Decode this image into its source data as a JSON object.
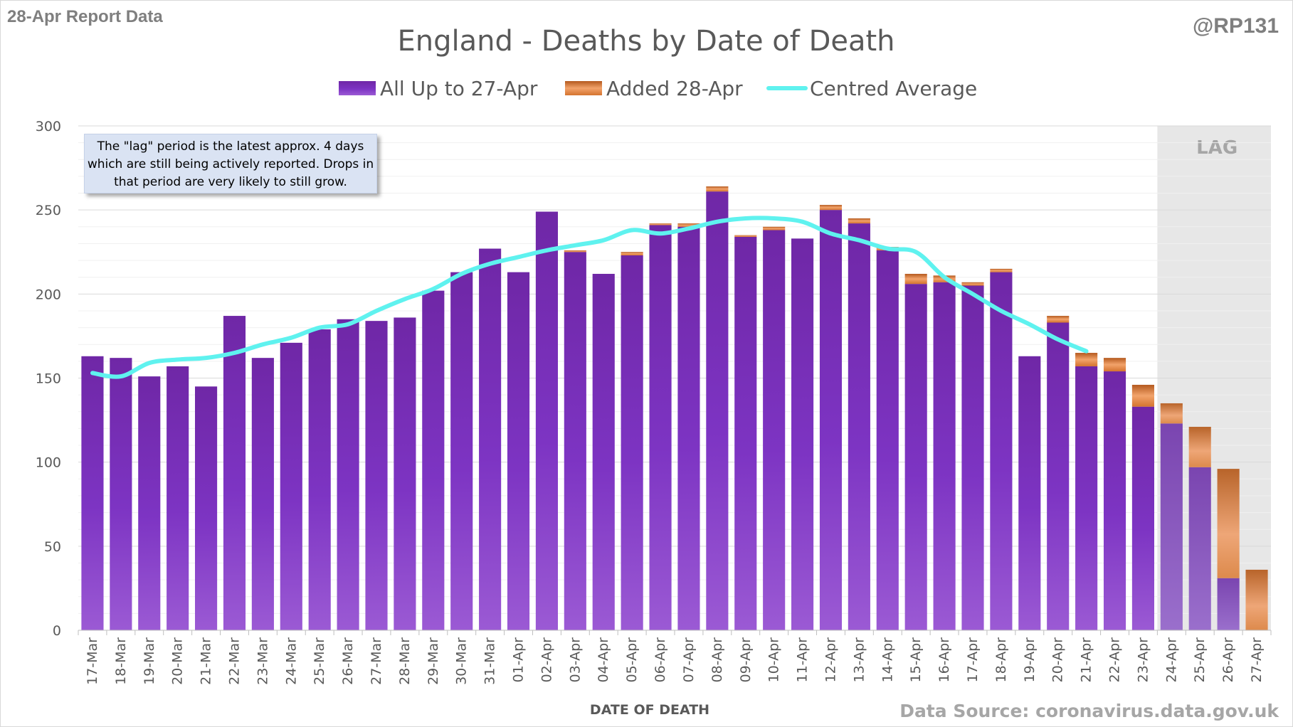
{
  "report_label": "28-Apr Report Data",
  "handle": "@RP131",
  "source": "Data Source: coronavirus.data.gov.uk",
  "annotation": "The \"lag\" period is the latest approx. 4 days which are still being actively reported. Drops in that period are very likely to still grow.",
  "lag_label": "LAG",
  "colors": {
    "all": "#7b2fbf",
    "added": "#e07a2e",
    "average": "#5ff2ef",
    "lag_shade": "#e6e6e6"
  },
  "chart_data": {
    "type": "bar",
    "title": "England - Deaths by Date of Death",
    "xlabel": "DATE OF DEATH",
    "ylabel": "",
    "ylim": [
      0,
      300
    ],
    "yticks": [
      0,
      50,
      100,
      150,
      200,
      250,
      300
    ],
    "stacked": true,
    "legend_position": "top",
    "grid": true,
    "categories": [
      "17-Mar",
      "18-Mar",
      "19-Mar",
      "20-Mar",
      "21-Mar",
      "22-Mar",
      "23-Mar",
      "24-Mar",
      "25-Mar",
      "26-Mar",
      "27-Mar",
      "28-Mar",
      "29-Mar",
      "30-Mar",
      "31-Mar",
      "01-Apr",
      "02-Apr",
      "03-Apr",
      "04-Apr",
      "05-Apr",
      "06-Apr",
      "07-Apr",
      "08-Apr",
      "09-Apr",
      "10-Apr",
      "11-Apr",
      "12-Apr",
      "13-Apr",
      "14-Apr",
      "15-Apr",
      "16-Apr",
      "17-Apr",
      "18-Apr",
      "19-Apr",
      "20-Apr",
      "21-Apr",
      "22-Apr",
      "23-Apr",
      "24-Apr",
      "25-Apr",
      "26-Apr",
      "27-Apr"
    ],
    "series": [
      {
        "name": "All Up to 27-Apr",
        "values": [
          163,
          162,
          151,
          157,
          145,
          187,
          162,
          171,
          179,
          185,
          184,
          186,
          202,
          213,
          227,
          213,
          249,
          225,
          212,
          223,
          241,
          240,
          261,
          234,
          238,
          233,
          250,
          242,
          226,
          206,
          207,
          205,
          213,
          163,
          183,
          157,
          154,
          133,
          123,
          97,
          31,
          0
        ]
      },
      {
        "name": "Added 28-Apr",
        "values": [
          0,
          0,
          0,
          0,
          0,
          0,
          0,
          0,
          0,
          0,
          0,
          0,
          0,
          0,
          0,
          0,
          0,
          1,
          0,
          2,
          1,
          2,
          3,
          1,
          2,
          0,
          3,
          3,
          2,
          6,
          4,
          2,
          2,
          0,
          4,
          8,
          8,
          13,
          12,
          24,
          65,
          36
        ]
      },
      {
        "name": "Centred Average",
        "type": "line",
        "values": [
          153,
          151,
          159,
          161,
          162,
          165,
          170,
          174,
          180,
          182,
          190,
          197,
          203,
          212,
          218,
          222,
          226,
          229,
          232,
          238,
          236,
          239,
          243,
          245,
          245,
          243,
          236,
          232,
          227,
          225,
          210,
          200,
          190,
          182,
          173,
          166,
          null,
          null,
          null,
          null,
          null,
          null
        ]
      }
    ],
    "lag_categories": [
      "24-Apr",
      "25-Apr",
      "26-Apr",
      "27-Apr"
    ],
    "annotations": [
      "LAG"
    ]
  }
}
